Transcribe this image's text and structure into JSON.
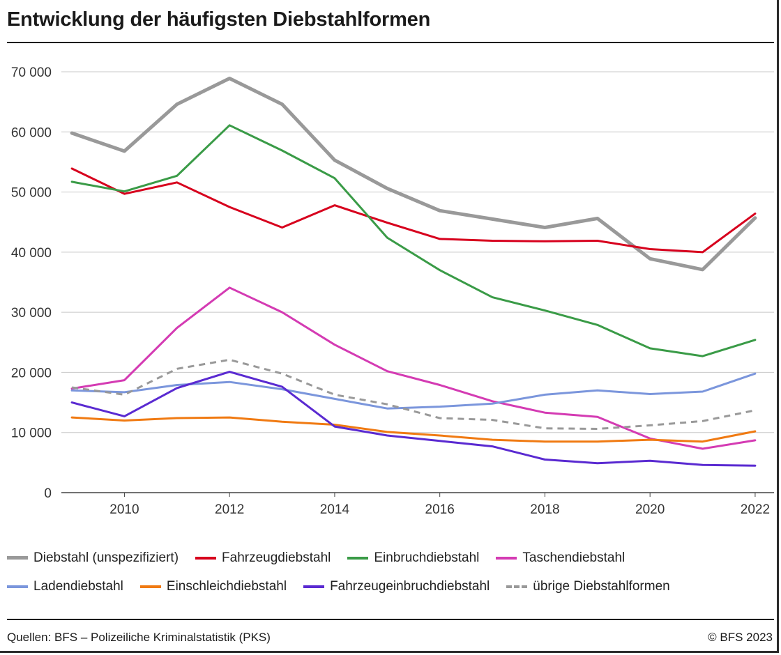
{
  "title": "Entwicklung der häufigsten Diebstahlformen",
  "source": "Quellen: BFS – Polizeiliche Kriminalstatistik (PKS)",
  "copyright": "© BFS 2023",
  "chart_data": {
    "type": "line",
    "title": "Entwicklung der häufigsten Diebstahlformen",
    "xlabel": "",
    "ylabel": "",
    "x": [
      2009,
      2010,
      2011,
      2012,
      2013,
      2014,
      2015,
      2016,
      2017,
      2018,
      2019,
      2020,
      2021,
      2022
    ],
    "xlim": [
      2008.8,
      2022.2
    ],
    "ylim": [
      0,
      70000
    ],
    "x_ticks": [
      2010,
      2012,
      2014,
      2016,
      2018,
      2020,
      2022
    ],
    "x_tick_labels": [
      "2010",
      "2012",
      "2014",
      "2016",
      "2018",
      "2020",
      "2022"
    ],
    "y_ticks": [
      0,
      10000,
      20000,
      30000,
      40000,
      50000,
      60000,
      70000
    ],
    "y_tick_labels": [
      "0",
      "10 000",
      "20 000",
      "30 000",
      "40 000",
      "50 000",
      "60 000",
      "70 000"
    ],
    "grid": true,
    "legend_position": "bottom",
    "series": [
      {
        "name": "Diebstahl (unspezifiziert)",
        "color": "#999999",
        "dashed": false,
        "bold": true,
        "values": [
          59800,
          56800,
          64600,
          68900,
          64600,
          55300,
          50600,
          46900,
          45500,
          44100,
          45600,
          38900,
          37100,
          45700
        ]
      },
      {
        "name": "Fahrzeugdiebstahl",
        "color": "#d7001d",
        "dashed": false,
        "bold": false,
        "values": [
          53900,
          49700,
          51600,
          47500,
          44100,
          47800,
          44900,
          42200,
          41900,
          41800,
          41900,
          40500,
          40000,
          46400
        ]
      },
      {
        "name": "Einbruchdiebstahl",
        "color": "#3a9b47",
        "dashed": false,
        "bold": false,
        "values": [
          51700,
          50100,
          52700,
          61100,
          56900,
          52300,
          42400,
          37000,
          32500,
          30300,
          27900,
          24000,
          22700,
          25400
        ]
      },
      {
        "name": "Taschendiebstahl",
        "color": "#d43bb3",
        "dashed": false,
        "bold": false,
        "values": [
          17300,
          18700,
          27400,
          34100,
          30000,
          24600,
          20200,
          17900,
          15200,
          13300,
          12600,
          9000,
          7300,
          8700
        ]
      },
      {
        "name": "Ladendiebstahl",
        "color": "#7b96dc",
        "dashed": false,
        "bold": false,
        "values": [
          17000,
          16700,
          17900,
          18400,
          17200,
          15600,
          14000,
          14300,
          14800,
          16300,
          17000,
          16400,
          16800,
          19800
        ]
      },
      {
        "name": "Einschleichdiebstahl",
        "color": "#f07a12",
        "dashed": false,
        "bold": false,
        "values": [
          12500,
          12000,
          12400,
          12500,
          11800,
          11300,
          10100,
          9500,
          8800,
          8500,
          8500,
          8800,
          8500,
          10200
        ]
      },
      {
        "name": "Fahrzeugeinbruchdiebstahl",
        "color": "#5a2ad1",
        "dashed": false,
        "bold": false,
        "values": [
          15000,
          12700,
          17400,
          20100,
          17600,
          11000,
          9500,
          8600,
          7700,
          5500,
          4900,
          5300,
          4600,
          4500
        ]
      },
      {
        "name": "übrige Diebstahlformen",
        "color": "#999999",
        "dashed": true,
        "bold": false,
        "values": [
          17500,
          16300,
          20600,
          22100,
          19800,
          16300,
          14700,
          12400,
          12100,
          10700,
          10600,
          11200,
          11900,
          13700
        ]
      }
    ]
  }
}
